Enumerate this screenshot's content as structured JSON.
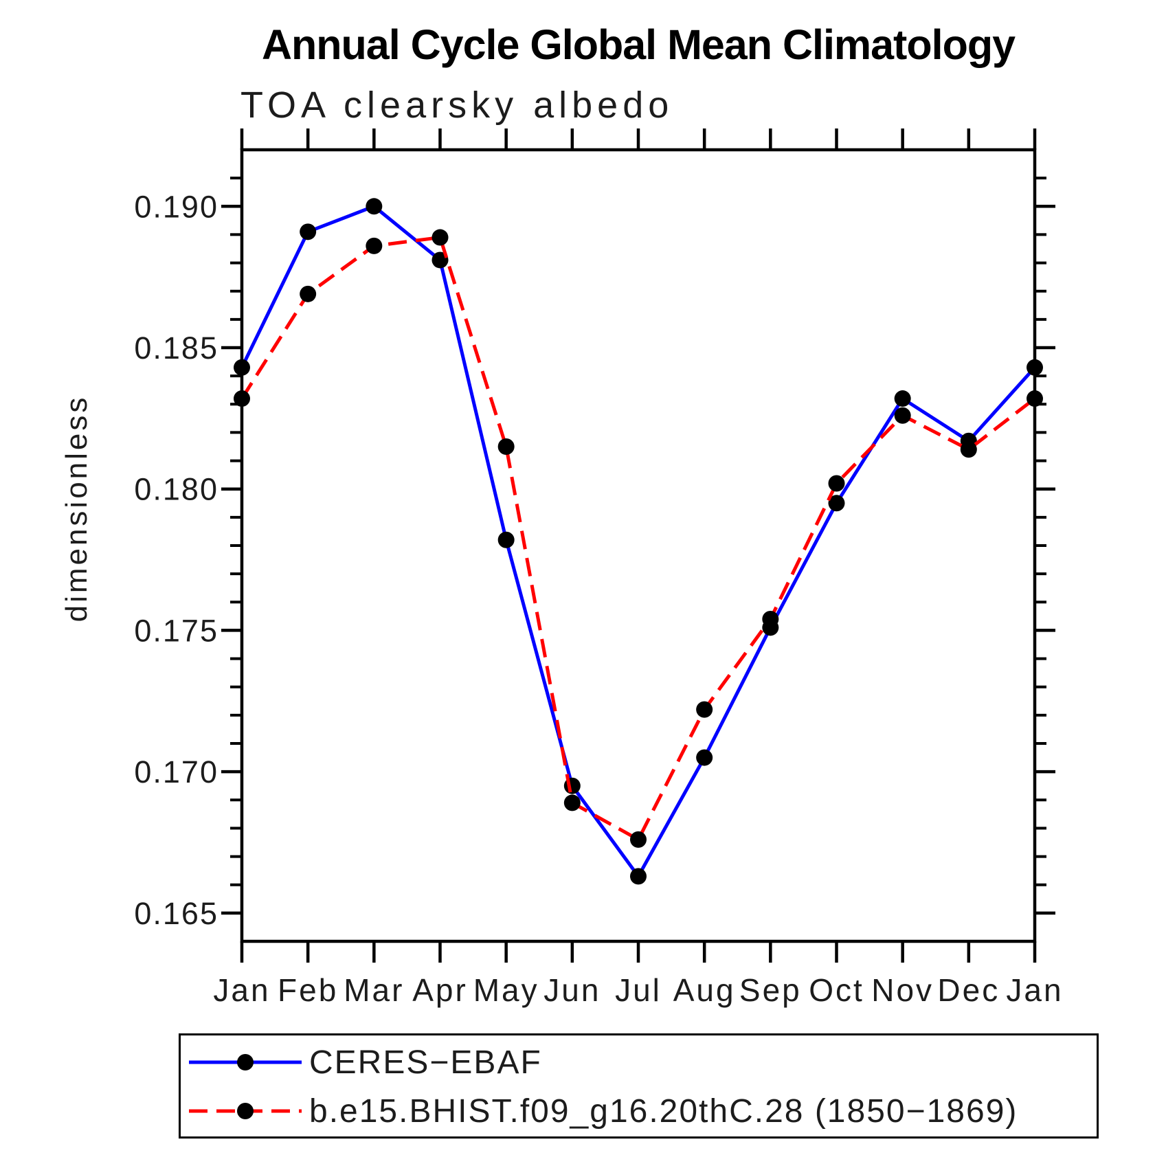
{
  "chart_data": {
    "type": "line",
    "title": "Annual Cycle Global Mean Climatology",
    "subtitle": "TOA clearsky albedo",
    "xlabel": "",
    "ylabel": "dimensionless",
    "categories": [
      "Jan",
      "Feb",
      "Mar",
      "Apr",
      "May",
      "Jun",
      "Jul",
      "Aug",
      "Sep",
      "Oct",
      "Nov",
      "Dec",
      "Jan"
    ],
    "ylim": [
      0.164,
      0.192
    ],
    "ytick_major_values": [
      0.165,
      0.17,
      0.175,
      0.18,
      0.185,
      0.19
    ],
    "ytick_major_labels": [
      "0.165",
      "0.170",
      "0.175",
      "0.180",
      "0.185",
      "0.190"
    ],
    "ytick_minor_step": 0.001,
    "grid": false,
    "legend_position": "bottom-left-box",
    "axis_color": "#000000",
    "series": [
      {
        "name": "CERES−EBAF",
        "color": "#0000ff",
        "line_style": "solid",
        "marker": "filled-circle",
        "marker_color": "#000000",
        "values": [
          0.1843,
          0.1891,
          0.19,
          0.1881,
          0.1782,
          0.1695,
          0.1663,
          0.1705,
          0.1751,
          0.1795,
          0.1832,
          0.1817,
          0.1843
        ]
      },
      {
        "name": "b.e15.BHIST.f09_g16.20thC.28 (1850−1869)",
        "color": "#ff0000",
        "line_style": "dashed",
        "marker": "filled-circle",
        "marker_color": "#000000",
        "values": [
          0.1832,
          0.1869,
          0.1886,
          0.1889,
          0.1815,
          0.1689,
          0.1676,
          0.1722,
          0.1754,
          0.1802,
          0.1826,
          0.1814,
          0.1832
        ]
      }
    ]
  }
}
